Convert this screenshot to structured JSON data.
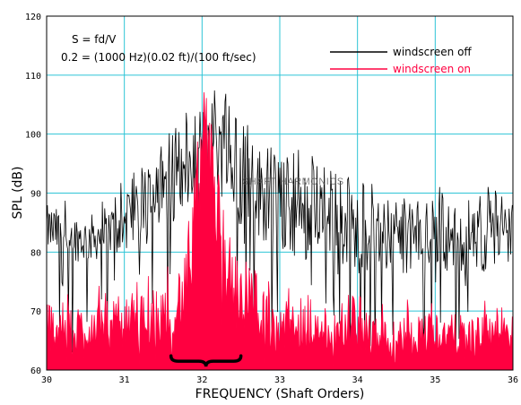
{
  "chart_data": {
    "type": "line",
    "title": "",
    "xlabel": "FREQUENCY (Shaft Orders)",
    "ylabel": "SPL (dB)",
    "xlim": [
      30,
      36
    ],
    "ylim": [
      60,
      120
    ],
    "x_ticks": [
      "30",
      "31",
      "32",
      "33",
      "34",
      "35",
      "36"
    ],
    "y_ticks": [
      "60",
      "70",
      "80",
      "90",
      "100",
      "110",
      "120"
    ],
    "grid": true,
    "legend_position": "top-right",
    "annotations": {
      "formula_line1": "S = fd/V",
      "formula_line2": "0.2 = (1000 Hz)(0.02 ft)/(100 ft/sec)",
      "overlay_text": "SHAFT HARMONICS"
    },
    "bracket": {
      "x_start": 31.6,
      "x_end": 32.5,
      "y": 61.5
    },
    "series": [
      {
        "name": "windscreen off",
        "color": "#000000",
        "x": [
          30.0,
          30.5,
          31.0,
          31.5,
          31.8,
          32.0,
          32.1,
          32.2,
          32.5,
          33.0,
          33.5,
          34.0,
          34.5,
          35.0,
          35.5,
          36.0
        ],
        "y_upper": [
          88,
          86,
          89,
          96,
          101,
          105,
          110,
          108,
          100,
          96,
          93,
          90,
          88,
          89,
          87,
          90
        ],
        "y_lower": [
          80,
          78,
          80,
          84,
          86,
          85,
          92,
          90,
          84,
          80,
          78,
          77,
          76,
          77,
          76,
          78
        ]
      },
      {
        "name": "windscreen on",
        "color": "#ff0040",
        "x": [
          30.0,
          30.5,
          31.0,
          31.5,
          31.8,
          31.95,
          32.05,
          32.15,
          32.3,
          32.5,
          33.0,
          33.5,
          34.0,
          34.5,
          35.0,
          35.5,
          36.0
        ],
        "y_upper": [
          72,
          71,
          72,
          74,
          80,
          97,
          107,
          100,
          88,
          76,
          72,
          70,
          70,
          69,
          70,
          69,
          70
        ],
        "y_lower": [
          63,
          63,
          63,
          64,
          66,
          78,
          88,
          82,
          70,
          64,
          63,
          63,
          62,
          62,
          63,
          62,
          63
        ]
      }
    ]
  }
}
